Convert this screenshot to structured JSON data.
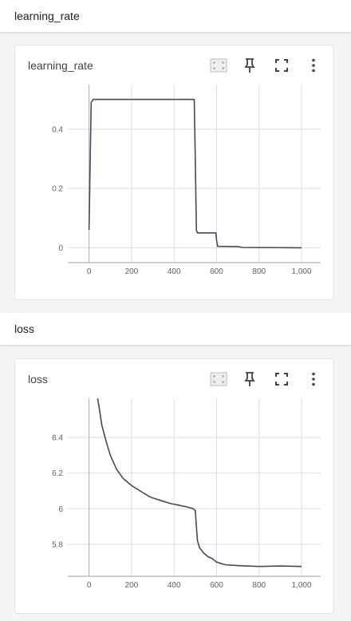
{
  "sections": [
    {
      "header": "learning_rate",
      "card_title": "learning_rate",
      "chart_data": {
        "type": "line",
        "xlim": [
          -100,
          1090
        ],
        "ylim": [
          -0.05,
          0.55
        ],
        "x_ticks": [
          0,
          200,
          400,
          600,
          800,
          1000
        ],
        "x_tick_labels": [
          "0",
          "200",
          "400",
          "600",
          "800",
          "1,000"
        ],
        "y_ticks": [
          0,
          0.2,
          0.4
        ],
        "y_tick_labels": [
          "0",
          "0.2",
          "0.4"
        ],
        "grid": true,
        "series": [
          {
            "color": "#3f4d5e",
            "x": [
              0,
              10,
              20,
              495,
              500,
              505,
              510,
              597,
              600,
              605,
              700,
              720,
              1000
            ],
            "y": [
              0.06,
              0.49,
              0.5,
              0.5,
              0.3,
              0.06,
              0.05,
              0.05,
              0.025,
              0.005,
              0.004,
              0.001,
              0.0
            ]
          }
        ]
      }
    },
    {
      "header": "loss",
      "card_title": "loss",
      "chart_data": {
        "type": "line",
        "xlim": [
          -100,
          1090
        ],
        "ylim": [
          5.62,
          6.62
        ],
        "x_ticks": [
          0,
          200,
          400,
          600,
          800,
          1000
        ],
        "x_tick_labels": [
          "0",
          "200",
          "400",
          "600",
          "800",
          "1,000"
        ],
        "y_ticks": [
          5.8,
          6.0,
          6.2,
          6.4
        ],
        "y_tick_labels": [
          "5.8",
          "6",
          "6.2",
          "6.4"
        ],
        "grid": true,
        "series": [
          {
            "color": "#3f4d5e",
            "x": [
              40,
              50,
              60,
              80,
              100,
              130,
              160,
              200,
              240,
              280,
              300,
              340,
              380,
              420,
              460,
              490,
              500,
              505,
              510,
              520,
              540,
              560,
              580,
              600,
              640,
              700,
              800,
              900,
              1000
            ],
            "y": [
              6.62,
              6.55,
              6.47,
              6.38,
              6.3,
              6.22,
              6.17,
              6.13,
              6.1,
              6.07,
              6.06,
              6.045,
              6.03,
              6.02,
              6.01,
              6.0,
              5.99,
              5.9,
              5.82,
              5.78,
              5.75,
              5.73,
              5.72,
              5.7,
              5.685,
              5.68,
              5.675,
              5.678,
              5.675
            ]
          }
        ]
      }
    }
  ],
  "icons": [
    "fit-domain-icon",
    "pin-icon",
    "fullscreen-icon",
    "more-vert-icon"
  ]
}
